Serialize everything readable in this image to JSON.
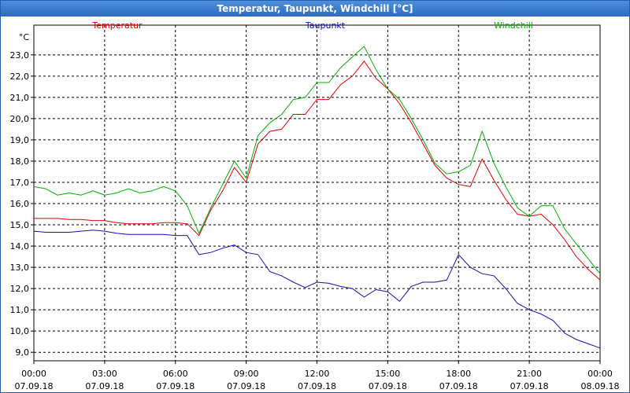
{
  "window": {
    "title": "Temperatur, Taupunkt, Windchill [°C]"
  },
  "chart_data": {
    "type": "line",
    "title": "Temperatur, Taupunkt, Windchill [°C]",
    "ylabel": "°C",
    "ylim": [
      8.6,
      24.4
    ],
    "xlim": [
      "2018-09-07 00:00",
      "2018-09-08 00:00"
    ],
    "grid": true,
    "legend_placement": "top",
    "y_ticks": [
      "9,0",
      "10,0",
      "11,0",
      "12,0",
      "13,0",
      "14,0",
      "15,0",
      "16,0",
      "17,0",
      "18,0",
      "19,0",
      "20,0",
      "21,0",
      "22,0",
      "23,0"
    ],
    "x_ticks": [
      {
        "time": "00:00",
        "date": "07.09.18"
      },
      {
        "time": "03:00",
        "date": "07.09.18"
      },
      {
        "time": "06:00",
        "date": "07.09.18"
      },
      {
        "time": "09:00",
        "date": "07.09.18"
      },
      {
        "time": "12:00",
        "date": "07.09.18"
      },
      {
        "time": "15:00",
        "date": "07.09.18"
      },
      {
        "time": "18:00",
        "date": "07.09.18"
      },
      {
        "time": "21:00",
        "date": "07.09.18"
      },
      {
        "time": "00:00",
        "date": "08.09.18"
      }
    ],
    "x": [
      "00:00",
      "00:30",
      "01:00",
      "01:30",
      "02:00",
      "02:30",
      "03:00",
      "03:30",
      "04:00",
      "04:30",
      "05:00",
      "05:30",
      "06:00",
      "06:30",
      "07:00",
      "07:30",
      "08:00",
      "08:30",
      "09:00",
      "09:30",
      "10:00",
      "10:30",
      "11:00",
      "11:30",
      "12:00",
      "12:30",
      "13:00",
      "13:30",
      "14:00",
      "14:30",
      "15:00",
      "15:30",
      "16:00",
      "16:30",
      "17:00",
      "17:30",
      "18:00",
      "18:30",
      "19:00",
      "19:30",
      "20:00",
      "20:30",
      "21:00",
      "21:30",
      "22:00",
      "22:30",
      "23:00",
      "23:30",
      "24:00"
    ],
    "series": [
      {
        "name": "Temperatur",
        "color": "#e00000",
        "values": [
          15.3,
          15.3,
          15.3,
          15.25,
          15.25,
          15.2,
          15.2,
          15.1,
          15.05,
          15.05,
          15.05,
          15.1,
          15.1,
          15.05,
          14.5,
          15.7,
          16.6,
          17.7,
          17.0,
          18.8,
          19.4,
          19.5,
          20.2,
          20.2,
          20.9,
          20.9,
          21.6,
          22.0,
          22.7,
          21.9,
          21.4,
          20.7,
          19.8,
          18.8,
          17.8,
          17.2,
          16.9,
          16.8,
          18.1,
          17.1,
          16.2,
          15.5,
          15.4,
          15.5,
          15.0,
          14.3,
          13.5,
          12.9,
          12.4
        ]
      },
      {
        "name": "Taupunkt",
        "color": "#1010b0",
        "values": [
          14.7,
          14.65,
          14.65,
          14.65,
          14.7,
          14.75,
          14.7,
          14.6,
          14.55,
          14.55,
          14.55,
          14.55,
          14.5,
          14.5,
          13.6,
          13.7,
          13.9,
          14.05,
          13.7,
          13.6,
          12.8,
          12.6,
          12.3,
          12.05,
          12.3,
          12.25,
          12.1,
          12.0,
          11.6,
          11.95,
          11.85,
          11.4,
          12.1,
          12.3,
          12.3,
          12.4,
          13.6,
          13.0,
          12.7,
          12.6,
          12.0,
          11.3,
          11.0,
          10.8,
          10.5,
          9.9,
          9.6,
          9.4,
          9.2
        ]
      },
      {
        "name": "Windchill",
        "color": "#00b000",
        "values": [
          16.8,
          16.7,
          16.4,
          16.5,
          16.4,
          16.6,
          16.4,
          16.5,
          16.7,
          16.5,
          16.6,
          16.8,
          16.6,
          15.9,
          14.6,
          15.8,
          16.9,
          18.0,
          17.2,
          19.2,
          19.8,
          20.2,
          20.9,
          21.0,
          21.7,
          21.7,
          22.4,
          22.9,
          23.4,
          22.3,
          21.4,
          20.9,
          20.0,
          19.0,
          17.9,
          17.4,
          17.5,
          17.8,
          19.4,
          17.9,
          16.8,
          15.8,
          15.4,
          15.9,
          15.9,
          14.8,
          14.1,
          13.4,
          12.7
        ]
      }
    ]
  }
}
